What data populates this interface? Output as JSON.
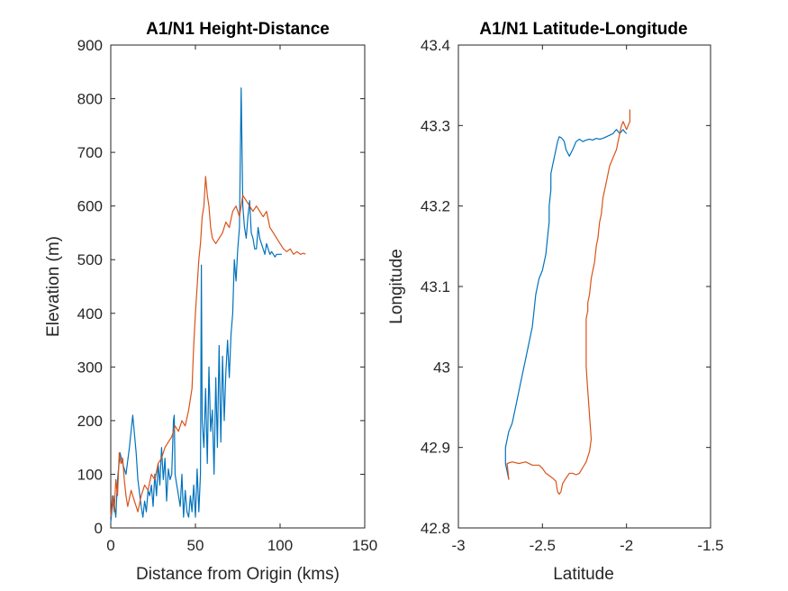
{
  "chart_data": [
    {
      "type": "line",
      "title": "A1/N1 Height-Distance",
      "xlabel": "Distance from Origin (kms)",
      "ylabel": "Elevation (m)",
      "xlim": [
        0,
        150
      ],
      "ylim": [
        0,
        900
      ],
      "xticks": [
        0,
        50,
        100,
        150
      ],
      "yticks": [
        0,
        100,
        200,
        300,
        400,
        500,
        600,
        700,
        800,
        900
      ],
      "xtick_labels": [
        "0",
        "50",
        "100",
        "150"
      ],
      "ytick_labels": [
        "0",
        "100",
        "200",
        "300",
        "400",
        "500",
        "600",
        "700",
        "800",
        "900"
      ],
      "grid": false,
      "legend": "none",
      "series": [
        {
          "color": "#0072BD",
          "x": [
            0,
            1.5,
            3,
            4,
            5.5,
            7,
            9,
            11,
            13,
            15,
            16,
            18,
            19,
            20,
            21,
            22,
            23,
            24,
            25,
            26,
            27,
            28,
            29,
            30,
            31,
            32,
            33,
            34,
            35,
            36,
            37,
            37.5,
            38,
            39,
            40,
            41,
            42,
            43,
            44,
            45,
            46,
            47,
            48,
            49,
            50,
            51,
            52,
            53,
            53.5,
            54,
            55,
            56,
            57,
            58,
            59,
            60,
            61,
            62,
            63,
            64,
            65,
            66,
            67,
            68,
            69,
            70,
            71,
            72,
            73,
            74,
            75,
            76,
            77,
            78,
            79,
            80,
            81,
            82,
            83,
            84,
            85,
            86,
            87,
            88,
            89,
            90,
            91,
            92,
            93,
            94,
            95,
            96,
            97,
            98,
            99,
            100,
            101
          ],
          "y": [
            10,
            60,
            20,
            90,
            140,
            120,
            100,
            150,
            210,
            140,
            90,
            40,
            20,
            50,
            30,
            70,
            60,
            80,
            40,
            100,
            60,
            120,
            80,
            150,
            90,
            130,
            50,
            110,
            90,
            100,
            200,
            210,
            100,
            80,
            60,
            40,
            100,
            20,
            70,
            30,
            20,
            60,
            30,
            80,
            20,
            110,
            30,
            100,
            490,
            200,
            150,
            260,
            120,
            300,
            180,
            220,
            100,
            280,
            150,
            340,
            160,
            320,
            200,
            290,
            350,
            280,
            360,
            400,
            500,
            460,
            520,
            560,
            820,
            600,
            560,
            540,
            580,
            610,
            550,
            540,
            520,
            520,
            560,
            540,
            530,
            520,
            510,
            530,
            520,
            510,
            515,
            510,
            505,
            510,
            510,
            510,
            510
          ]
        },
        {
          "color": "#D95319",
          "x": [
            0,
            1,
            2,
            3,
            4,
            5,
            6,
            7,
            8,
            9,
            10,
            12,
            14,
            16,
            18,
            20,
            22,
            24,
            26,
            28,
            30,
            32,
            34,
            36,
            38,
            40,
            42,
            44,
            46,
            48,
            49,
            50,
            51,
            52,
            53,
            54,
            55,
            56,
            57,
            58,
            59,
            60,
            62,
            64,
            66,
            68,
            70,
            72,
            74,
            76,
            78,
            80,
            82,
            84,
            86,
            88,
            90,
            92,
            94,
            96,
            98,
            100,
            102,
            104,
            106,
            108,
            110,
            112,
            114,
            115
          ],
          "y": [
            20,
            60,
            30,
            90,
            60,
            140,
            120,
            130,
            90,
            60,
            40,
            70,
            50,
            30,
            60,
            80,
            70,
            100,
            90,
            120,
            130,
            150,
            160,
            170,
            190,
            180,
            200,
            190,
            220,
            260,
            340,
            400,
            450,
            500,
            530,
            580,
            600,
            655,
            620,
            600,
            560,
            540,
            530,
            540,
            550,
            570,
            560,
            590,
            600,
            580,
            620,
            610,
            600,
            590,
            600,
            590,
            580,
            590,
            560,
            550,
            540,
            530,
            520,
            515,
            520,
            510,
            515,
            510,
            512,
            510
          ]
        }
      ]
    },
    {
      "type": "line",
      "title": "A1/N1 Latitude-Longitude",
      "xlabel": "Latitude",
      "ylabel": "Longitude",
      "xlim": [
        -3,
        -1.5
      ],
      "ylim": [
        42.8,
        43.4
      ],
      "xticks": [
        -3,
        -2.5,
        -2,
        -1.5
      ],
      "yticks": [
        42.8,
        42.9,
        43.0,
        43.1,
        43.2,
        43.3,
        43.4
      ],
      "xtick_labels": [
        "-3",
        "-2.5",
        "-2",
        "-1.5"
      ],
      "ytick_labels": [
        "42.8",
        "42.9",
        "43",
        "43.1",
        "43.2",
        "43.3",
        "43.4"
      ],
      "grid": false,
      "legend": "none",
      "series": [
        {
          "color": "#0072BD",
          "x": [
            -2.7,
            -2.72,
            -2.72,
            -2.7,
            -2.68,
            -2.66,
            -2.64,
            -2.62,
            -2.6,
            -2.58,
            -2.56,
            -2.55,
            -2.54,
            -2.52,
            -2.5,
            -2.48,
            -2.47,
            -2.46,
            -2.46,
            -2.45,
            -2.45,
            -2.44,
            -2.43,
            -2.42,
            -2.41,
            -2.4,
            -2.39,
            -2.38,
            -2.37,
            -2.36,
            -2.34,
            -2.32,
            -2.3,
            -2.28,
            -2.26,
            -2.24,
            -2.22,
            -2.2,
            -2.18,
            -2.16,
            -2.14,
            -2.12,
            -2.1,
            -2.08,
            -2.06,
            -2.04,
            -2.02,
            -2.01,
            -2.0
          ],
          "y": [
            42.86,
            42.88,
            42.9,
            42.92,
            42.93,
            42.95,
            42.97,
            42.99,
            43.01,
            43.03,
            43.05,
            43.07,
            43.09,
            43.11,
            43.12,
            43.14,
            43.16,
            43.18,
            43.2,
            43.22,
            43.24,
            43.25,
            43.26,
            43.27,
            43.28,
            43.286,
            43.285,
            43.283,
            43.28,
            43.27,
            43.262,
            43.27,
            43.28,
            43.283,
            43.28,
            43.282,
            43.283,
            43.282,
            43.284,
            43.283,
            43.284,
            43.286,
            43.288,
            43.29,
            43.295,
            43.29,
            43.295,
            43.292,
            43.29
          ]
        },
        {
          "color": "#D95319",
          "x": [
            -2.7,
            -2.71,
            -2.68,
            -2.64,
            -2.6,
            -2.56,
            -2.52,
            -2.5,
            -2.48,
            -2.46,
            -2.44,
            -2.42,
            -2.41,
            -2.4,
            -2.39,
            -2.38,
            -2.36,
            -2.34,
            -2.32,
            -2.3,
            -2.28,
            -2.26,
            -2.24,
            -2.22,
            -2.21,
            -2.22,
            -2.23,
            -2.24,
            -2.24,
            -2.24,
            -2.24,
            -2.23,
            -2.23,
            -2.22,
            -2.21,
            -2.2,
            -2.19,
            -2.18,
            -2.17,
            -2.16,
            -2.15,
            -2.14,
            -2.12,
            -2.1,
            -2.08,
            -2.06,
            -2.05,
            -2.04,
            -2.03,
            -2.02,
            -2.01,
            -2.0,
            -1.99,
            -1.98,
            -1.98
          ],
          "y": [
            42.86,
            42.88,
            42.882,
            42.88,
            42.882,
            42.878,
            42.878,
            42.874,
            42.868,
            42.865,
            42.862,
            42.858,
            42.845,
            42.842,
            42.845,
            42.855,
            42.862,
            42.868,
            42.868,
            42.866,
            42.868,
            42.875,
            42.882,
            42.895,
            42.91,
            42.94,
            42.97,
            43.0,
            43.02,
            43.04,
            43.06,
            43.07,
            43.08,
            43.09,
            43.11,
            43.12,
            43.13,
            43.15,
            43.16,
            43.18,
            43.19,
            43.21,
            43.23,
            43.25,
            43.26,
            43.27,
            43.28,
            43.29,
            43.3,
            43.305,
            43.3,
            43.295,
            43.3,
            43.305,
            43.32
          ]
        }
      ]
    }
  ]
}
